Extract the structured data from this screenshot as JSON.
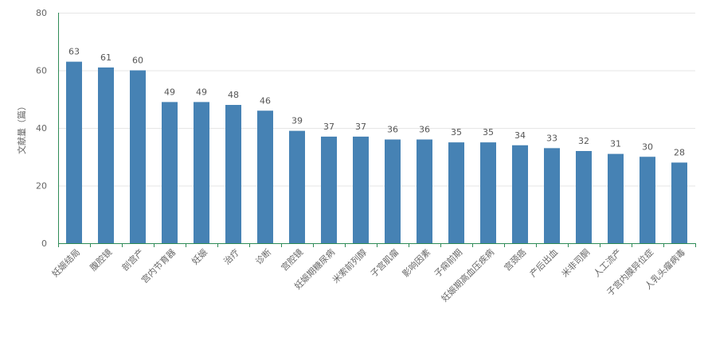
{
  "chart_data": {
    "type": "bar",
    "title": "",
    "xlabel": "",
    "ylabel": "文献量（篇）",
    "ylim": [
      0,
      80
    ],
    "yticks": [
      0,
      20,
      40,
      60,
      80
    ],
    "grid": true,
    "legend": "none",
    "bar_color": "#4682b4",
    "axis_color": "#2e8b57",
    "categories": [
      "妊娠结局",
      "腹腔镜",
      "剖宫产",
      "宫内节育器",
      "妊娠",
      "治疗",
      "诊断",
      "宫腔镜",
      "妊娠期糖尿病",
      "米索前列醇",
      "子宫肌瘤",
      "影响因素",
      "子痫前期",
      "妊娠期高血压疾病",
      "宫颈癌",
      "产后出血",
      "米非司酮",
      "人工流产",
      "子宫内膜异位症",
      "人乳头瘤病毒"
    ],
    "values": [
      63,
      61,
      60,
      49,
      49,
      48,
      46,
      39,
      37,
      37,
      36,
      36,
      35,
      35,
      34,
      33,
      32,
      31,
      30,
      28
    ]
  }
}
